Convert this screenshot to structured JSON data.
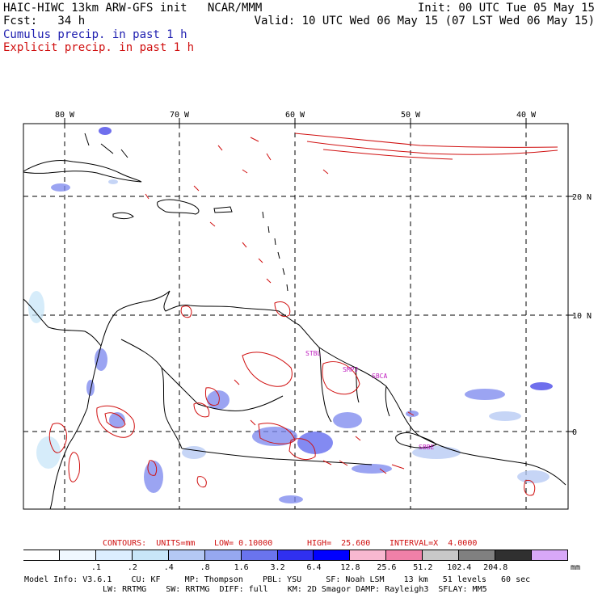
{
  "header": {
    "title": "HAIC-HIWC 13km ARW-GFS init   NCAR/MMM",
    "init": "Init: 00 UTC Tue 05 May 15",
    "fcst": "Fcst:   34 h",
    "valid": "Valid: 10 UTC Wed 06 May 15 (07 LST Wed 06 May 15)",
    "legend_cumulus": "Cumulus precip. in past 1 h",
    "legend_explicit": "Explicit precip. in past 1 h"
  },
  "map": {
    "lon_labels": [
      "80 W",
      "70 W",
      "60 W",
      "50 W",
      "40 W"
    ],
    "lat_labels": [
      "20 N",
      "10 N",
      "0"
    ],
    "stations": [
      "STBL",
      "SMPJ",
      "SBCA",
      "SBBE"
    ]
  },
  "contour_info": {
    "contours": "CONTOURS:  UNITS=mm",
    "low": "LOW= 0.10000",
    "high": "HIGH=  25.600",
    "interval": "INTERVAL=X  4.0000"
  },
  "colorbar": {
    "labels": [
      ".1",
      ".2",
      ".4",
      ".8",
      "1.6",
      "3.2",
      "6.4",
      "12.8",
      "25.6",
      "51.2",
      "102.4",
      "204.8"
    ],
    "unit": "mm",
    "colors": [
      "#ffffff",
      "#f0f8ff",
      "#dceeff",
      "#c8e6f8",
      "#b4c8f4",
      "#96a8f0",
      "#6a74ee",
      "#3030f0",
      "#0000ff",
      "#f8b8d0",
      "#f080a8",
      "#c8c8c8",
      "#808080",
      "#303030",
      "#d8a8f8"
    ]
  },
  "model_info": {
    "line1": "Model Info: V3.6.1    CU: KF     MP: Thompson    PBL: YSU     SF: Noah LSM    13 km   51 levels   60 sec",
    "line2": "LW: RRTMG    SW: RRTMG  DIFF: full    KM: 2D Smagor DAMP: Rayleigh3  SFLAY: MM5"
  }
}
